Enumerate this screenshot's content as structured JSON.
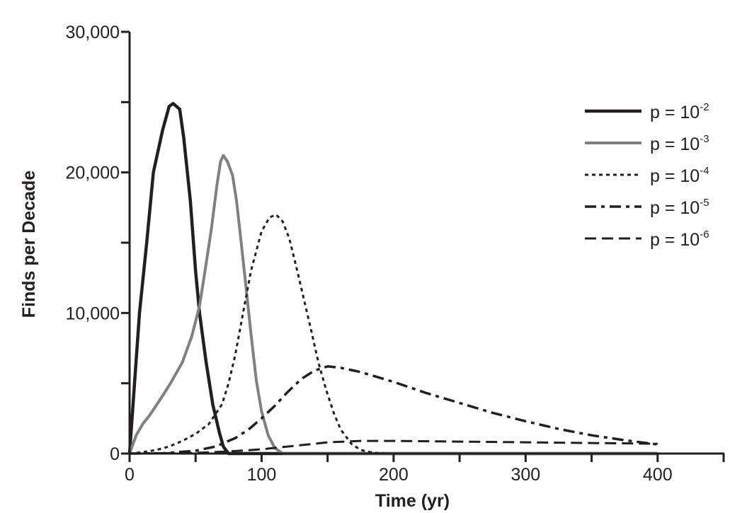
{
  "chart_data": {
    "type": "line",
    "title": "",
    "xlabel": "Time (yr)",
    "ylabel": "Finds per Decade",
    "xlim": [
      0,
      450
    ],
    "ylim": [
      0,
      30000
    ],
    "xticks": [
      0,
      100,
      200,
      300,
      400
    ],
    "xtick_labels": [
      "0",
      "100",
      "200",
      "300",
      "400"
    ],
    "xminor": [
      50,
      150,
      250,
      350,
      450
    ],
    "yticks": [
      0,
      10000,
      20000,
      30000
    ],
    "ytick_labels": [
      "0",
      "10,000",
      "20,000",
      "30,000"
    ],
    "yminor": [
      5000,
      15000,
      25000
    ],
    "grid": false,
    "legend_position": "top-right",
    "series": [
      {
        "name": "p = 10",
        "exp": "-2",
        "color": "#231f20",
        "style": "solid-thick",
        "points": [
          [
            0,
            0
          ],
          [
            3,
            4000
          ],
          [
            7.5,
            10000
          ],
          [
            13,
            15000
          ],
          [
            18,
            20000
          ],
          [
            25,
            23000
          ],
          [
            30,
            24700
          ],
          [
            33,
            24900
          ],
          [
            38,
            24500
          ],
          [
            41,
            22500
          ],
          [
            46,
            18000
          ],
          [
            50,
            13000
          ],
          [
            53,
            10000
          ],
          [
            58,
            6500
          ],
          [
            63,
            3500
          ],
          [
            68,
            1500
          ],
          [
            71,
            500
          ],
          [
            75,
            0
          ],
          [
            400,
            0
          ]
        ]
      },
      {
        "name": "p = 10",
        "exp": "-3",
        "color": "#808080",
        "style": "solid",
        "points": [
          [
            0,
            0
          ],
          [
            5,
            1300
          ],
          [
            10,
            2100
          ],
          [
            15,
            2700
          ],
          [
            20,
            3400
          ],
          [
            25,
            4100
          ],
          [
            31,
            5000
          ],
          [
            40,
            6500
          ],
          [
            47,
            8300
          ],
          [
            53,
            10500
          ],
          [
            58,
            13500
          ],
          [
            62,
            16000
          ],
          [
            66,
            19000
          ],
          [
            69,
            20800
          ],
          [
            71,
            21200
          ],
          [
            74,
            20800
          ],
          [
            78,
            19800
          ],
          [
            81,
            18000
          ],
          [
            84,
            15500
          ],
          [
            88,
            12000
          ],
          [
            92,
            8500
          ],
          [
            96,
            5200
          ],
          [
            100,
            3000
          ],
          [
            105,
            1300
          ],
          [
            110,
            400
          ],
          [
            116,
            0
          ],
          [
            400,
            0
          ]
        ]
      },
      {
        "name": "p = 10",
        "exp": "-4",
        "color": "#231f20",
        "style": "dotted",
        "points": [
          [
            0,
            0
          ],
          [
            10,
            100
          ],
          [
            20,
            250
          ],
          [
            30,
            500
          ],
          [
            40,
            900
          ],
          [
            50,
            1400
          ],
          [
            60,
            2100
          ],
          [
            70,
            3500
          ],
          [
            75,
            5000
          ],
          [
            80,
            7000
          ],
          [
            86,
            10000
          ],
          [
            92,
            13000
          ],
          [
            100,
            15800
          ],
          [
            106,
            16800
          ],
          [
            111,
            17000
          ],
          [
            116,
            16500
          ],
          [
            121,
            15300
          ],
          [
            127,
            13000
          ],
          [
            132,
            11000
          ],
          [
            137,
            9000
          ],
          [
            143,
            6500
          ],
          [
            149,
            4500
          ],
          [
            155,
            2800
          ],
          [
            160,
            1700
          ],
          [
            168,
            700
          ],
          [
            175,
            250
          ],
          [
            185,
            50
          ],
          [
            195,
            0
          ],
          [
            400,
            0
          ]
        ]
      },
      {
        "name": "p = 10",
        "exp": "-5",
        "color": "#231f20",
        "style": "dashdot",
        "points": [
          [
            0,
            0
          ],
          [
            25,
            20
          ],
          [
            50,
            200
          ],
          [
            65,
            500
          ],
          [
            80,
            1100
          ],
          [
            90,
            1700
          ],
          [
            100,
            2500
          ],
          [
            110,
            3400
          ],
          [
            120,
            4400
          ],
          [
            130,
            5300
          ],
          [
            140,
            5900
          ],
          [
            150,
            6200
          ],
          [
            160,
            6100
          ],
          [
            175,
            5800
          ],
          [
            200,
            5100
          ],
          [
            225,
            4300
          ],
          [
            250,
            3600
          ],
          [
            275,
            2900
          ],
          [
            300,
            2300
          ],
          [
            325,
            1750
          ],
          [
            350,
            1300
          ],
          [
            375,
            950
          ],
          [
            400,
            650
          ]
        ]
      },
      {
        "name": "p = 10",
        "exp": "-6",
        "color": "#231f20",
        "style": "dashed",
        "points": [
          [
            0,
            0
          ],
          [
            50,
            50
          ],
          [
            75,
            150
          ],
          [
            100,
            300
          ],
          [
            125,
            550
          ],
          [
            150,
            800
          ],
          [
            175,
            900
          ],
          [
            200,
            900
          ],
          [
            250,
            850
          ],
          [
            300,
            800
          ],
          [
            350,
            750
          ],
          [
            400,
            700
          ]
        ]
      }
    ]
  }
}
